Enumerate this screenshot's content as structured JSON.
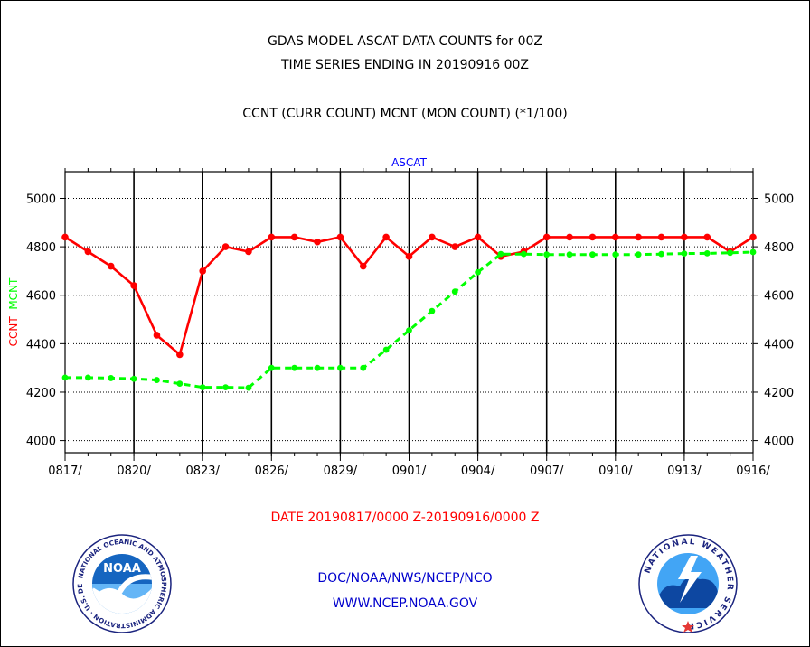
{
  "header": {
    "title_line1": "GDAS MODEL ASCAT DATA COUNTS for 00Z",
    "title_line2": "TIME SERIES ENDING IN 20190916 00Z",
    "subtitle": "CCNT (CURR COUNT) MCNT (MON COUNT) (*1/100)"
  },
  "chart_data": {
    "type": "line",
    "title": "ASCAT",
    "ylabel_left": [
      "CCNT",
      "MCNT"
    ],
    "ylim": [
      3950,
      5110
    ],
    "yticks": [
      4000,
      4200,
      4400,
      4600,
      4800,
      5000
    ],
    "grid": true,
    "x_tick_labels": [
      "0817/",
      "0820/",
      "0823/",
      "0826/",
      "0829/",
      "0901/",
      "0904/",
      "0907/",
      "0910/",
      "0913/",
      "0916/"
    ],
    "x_range_days": [
      0,
      30
    ],
    "xlabel": "DATE 20190817/0000 Z-20190916/0000 Z",
    "series": [
      {
        "name": "CCNT",
        "color": "#ff0000",
        "style": "solid",
        "values": [
          4840,
          4780,
          4720,
          4640,
          4435,
          4355,
          4700,
          4800,
          4780,
          4840,
          4840,
          4820,
          4840,
          4720,
          4840,
          4760,
          4840,
          4800,
          4840,
          4760,
          4780,
          4840,
          4840,
          4840,
          4840,
          4840,
          4840,
          4840,
          4840,
          4780,
          4840
        ]
      },
      {
        "name": "MCNT",
        "color": "#00ff00",
        "style": "dashed",
        "values": [
          4260,
          4260,
          4258,
          4255,
          4250,
          4235,
          4220,
          4220,
          4218,
          4300,
          4300,
          4300,
          4300,
          4300,
          4375,
          4455,
          4535,
          4615,
          4695,
          4770,
          4770,
          4768,
          4768,
          4768,
          4768,
          4768,
          4770,
          4772,
          4773,
          4775,
          4778
        ]
      }
    ]
  },
  "footer": {
    "credit": "DOC/NOAA/NWS/NCEP/NCO",
    "url": "WWW.NCEP.NOAA.GOV"
  },
  "colors": {
    "ccnt": "#ff0000",
    "mcnt": "#00ff00",
    "ascat_title": "#0000ff",
    "date_label": "#ff0000",
    "footer_text": "#0000cc"
  },
  "logos": {
    "noaa_text": "NOAA",
    "noaa_ring": "NATIONAL OCEANIC AND ATMOSPHERIC ADMINISTRATION · U.S. DEPARTMENT OF COMMERCE ·",
    "nws_ring": "NATIONAL WEATHER SERVICE"
  }
}
